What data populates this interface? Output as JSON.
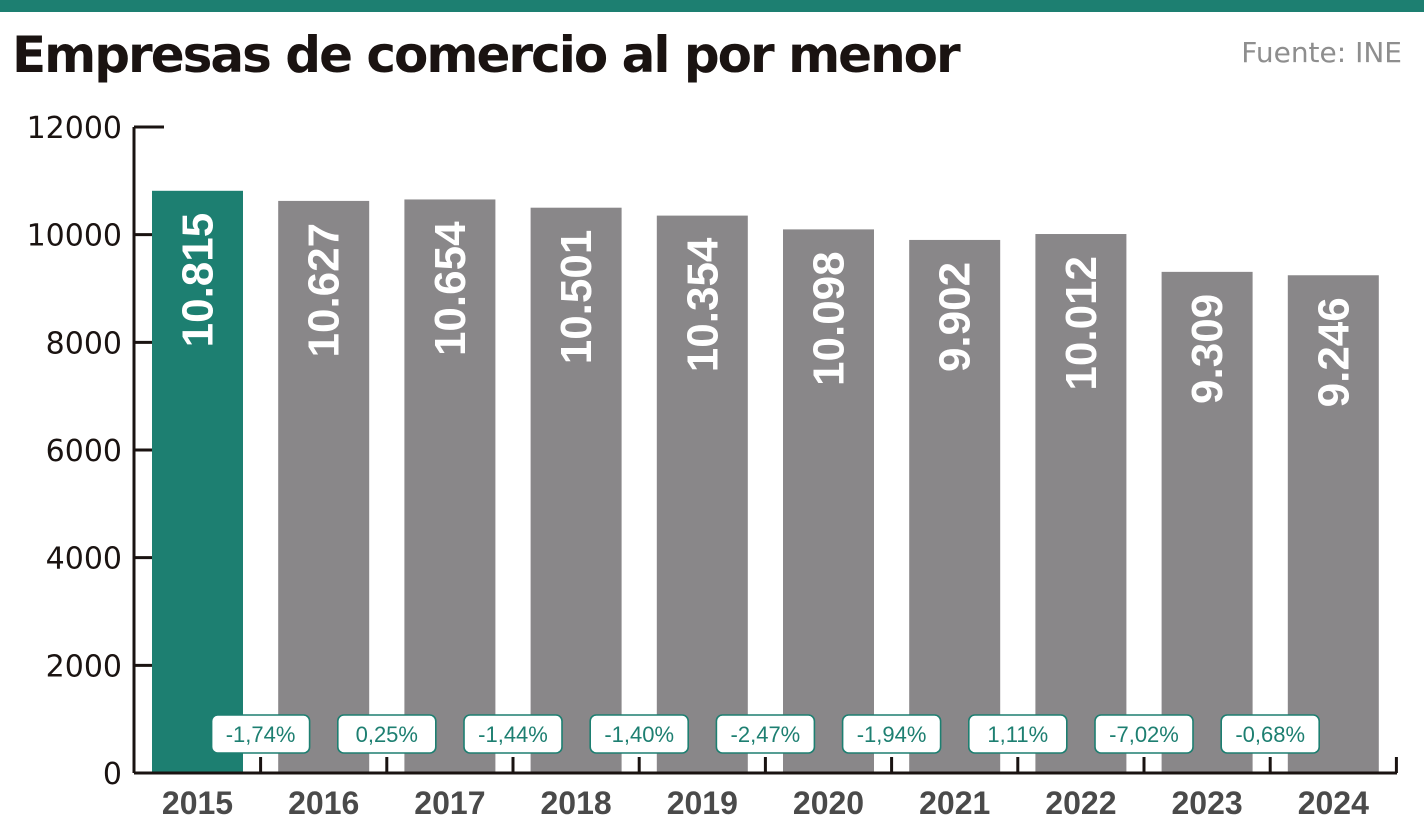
{
  "header": {
    "title": "Empresas de comercio al por menor",
    "source": "Fuente: INE"
  },
  "colors": {
    "accent": "#1d7f71",
    "bar_default": "#898789",
    "axis": "#1a1311",
    "change_badge_text": "#1d7f71"
  },
  "chart_data": {
    "type": "bar",
    "title": "Empresas de comercio al por menor",
    "xlabel": "",
    "ylabel": "",
    "ylim": [
      0,
      12000
    ],
    "yticks": [
      0,
      2000,
      4000,
      6000,
      8000,
      10000,
      12000
    ],
    "ytick_labels": [
      "0",
      "2000",
      "4000",
      "6000",
      "8000",
      "10000",
      "12000"
    ],
    "categories": [
      "2015",
      "2016",
      "2017",
      "2018",
      "2019",
      "2020",
      "2021",
      "2022",
      "2023",
      "2024"
    ],
    "values": [
      10815,
      10627,
      10654,
      10501,
      10354,
      10098,
      9902,
      10012,
      9309,
      9246
    ],
    "value_labels": [
      "10.815",
      "10.627",
      "10.654",
      "10.501",
      "10.354",
      "10.098",
      "9.902",
      "10.012",
      "9.309",
      "9.246"
    ],
    "highlight": "2015",
    "grid": false,
    "annotations": {
      "year_over_year_change": [
        "-1,74%",
        "0,25%",
        "-1,44%",
        "-1,40%",
        "-2,47%",
        "-1,94%",
        "1,11%",
        "-7,02%",
        "-0,68%"
      ]
    }
  }
}
